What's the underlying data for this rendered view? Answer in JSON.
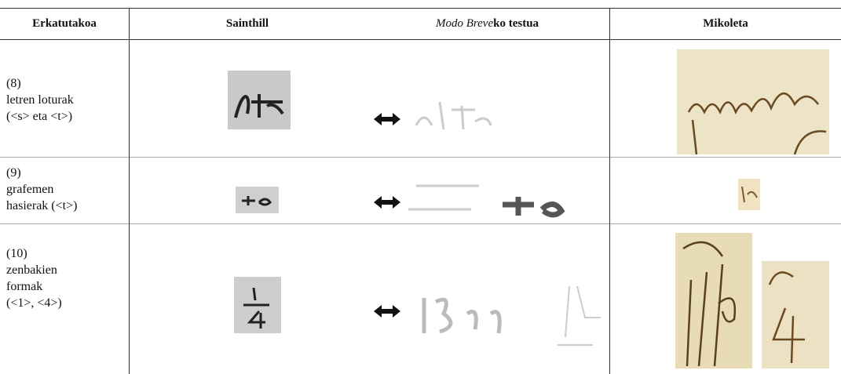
{
  "table": {
    "header": [
      "Erkatutakoa",
      "Sainthill",
      {
        "italic": "Modo Breve",
        "rest": "ko testua"
      },
      "Mikoleta"
    ],
    "rows": [
      {
        "label": [
          "(8)",
          "letren loturak",
          "(<s> eta <t>)"
        ]
      },
      {
        "label": [
          "(9)",
          "grafemen",
          "hasierak (<t>)"
        ]
      },
      {
        "label": [
          "(10)",
          "zenbakien",
          "formak",
          "(<1>, <4>)"
        ]
      }
    ]
  }
}
